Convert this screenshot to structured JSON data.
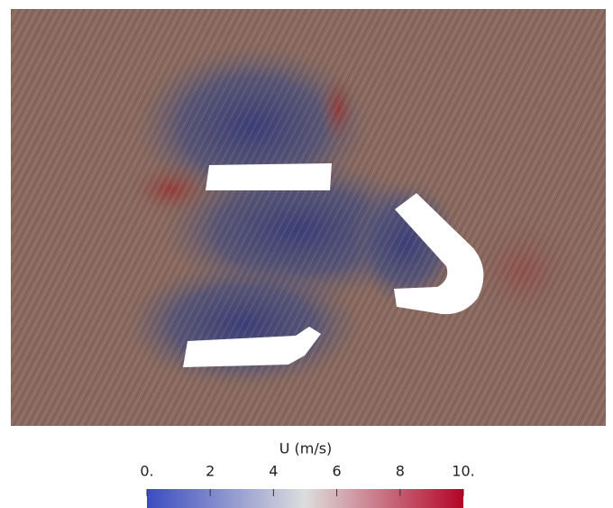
{
  "chart_data": {
    "type": "colorbar",
    "title": "U (m/s)",
    "clim": [
      0,
      10
    ],
    "ticks": [
      {
        "value": 0,
        "label": "0."
      },
      2,
      4,
      6,
      8,
      {
        "value": 10,
        "label": "10."
      }
    ],
    "colormap": [
      "#3b4cc0",
      "#dddddd",
      "#b40426"
    ]
  }
}
